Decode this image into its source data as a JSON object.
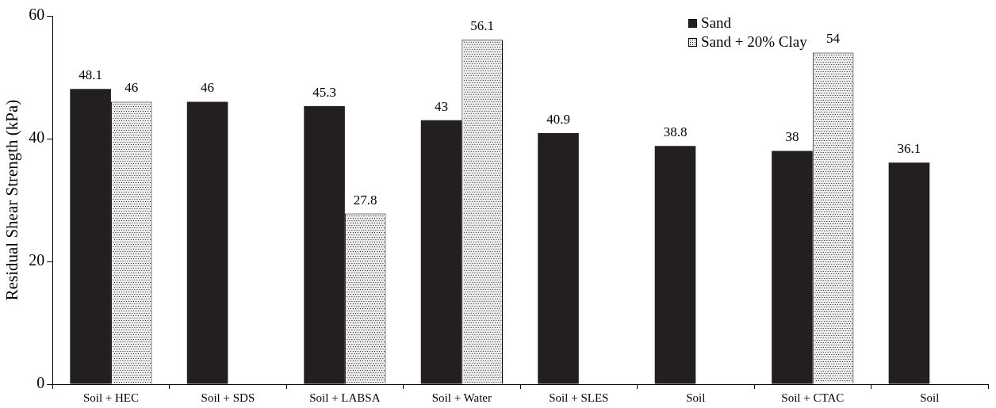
{
  "chart_data": {
    "type": "bar",
    "ylabel": "Residual Shear Strength (kPa)",
    "categories": [
      "Soil + HEC",
      "Soil + SDS",
      "Soil + LABSA",
      "Soil + Water",
      "Soil + SLES",
      "Soil",
      "Soil + CTAC",
      "Soil"
    ],
    "series": [
      {
        "name": "Sand",
        "color": "#231f20",
        "values": [
          48.1,
          46,
          45.3,
          43,
          40.9,
          38.8,
          38,
          36.1
        ]
      },
      {
        "name": "Sand + 20% Clay",
        "color": "#eeeeee",
        "values": [
          46,
          null,
          27.8,
          56.1,
          null,
          null,
          54,
          null
        ]
      }
    ],
    "ylim": [
      0,
      60
    ],
    "yticks": [
      0,
      20,
      40,
      60
    ],
    "grid": false,
    "legend": "top right",
    "data_labels": true
  }
}
